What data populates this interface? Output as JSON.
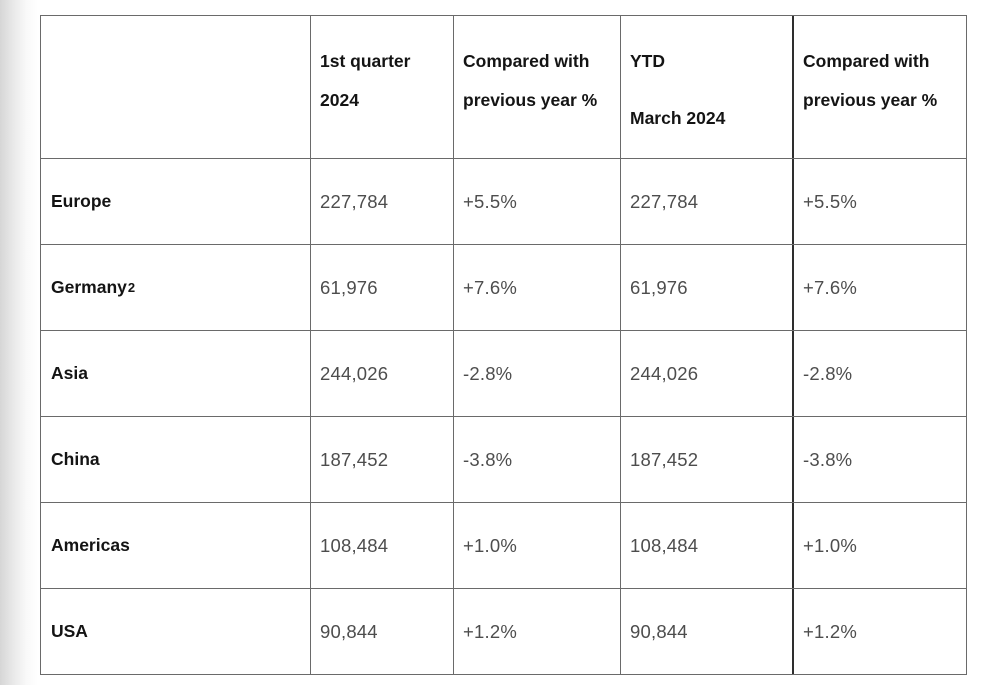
{
  "colors": {
    "border": "#6a6a6a",
    "border_strong": "#2e2e2e",
    "text_header": "#141414",
    "text_value": "#4d4d4d",
    "page_edge_gradient_start": "#d6d6d6",
    "background": "#ffffff"
  },
  "chart_data": {
    "type": "table",
    "columns": [
      "",
      "1st quarter 2024",
      "Compared with previous year %",
      "YTD March 2024",
      "Compared with previous year %"
    ],
    "header": {
      "col1": "",
      "col2": "1st quarter 2024",
      "col3": "Compared with previous year %",
      "col4_line1": "YTD",
      "col4_line2": "March 2024",
      "col5": "Compared with previous year %"
    },
    "rows": [
      {
        "region": "Europe",
        "sup": "",
        "q1": "227,784",
        "q1_vs_py": "+5.5%",
        "ytd": "227,784",
        "ytd_vs_py": "+5.5%"
      },
      {
        "region": "Germany",
        "sup": "2",
        "q1": "61,976",
        "q1_vs_py": "+7.6%",
        "ytd": "61,976",
        "ytd_vs_py": "+7.6%"
      },
      {
        "region": "Asia",
        "sup": "",
        "q1": "244,026",
        "q1_vs_py": "-2.8%",
        "ytd": "244,026",
        "ytd_vs_py": "-2.8%"
      },
      {
        "region": "China",
        "sup": "",
        "q1": "187,452",
        "q1_vs_py": "-3.8%",
        "ytd": "187,452",
        "ytd_vs_py": "-3.8%"
      },
      {
        "region": "Americas",
        "sup": "",
        "q1": "108,484",
        "q1_vs_py": "+1.0%",
        "ytd": "108,484",
        "ytd_vs_py": "+1.0%"
      },
      {
        "region": "USA",
        "sup": "",
        "q1": "90,844",
        "q1_vs_py": "+1.2%",
        "ytd": "90,844",
        "ytd_vs_py": "+1.2%"
      }
    ]
  }
}
